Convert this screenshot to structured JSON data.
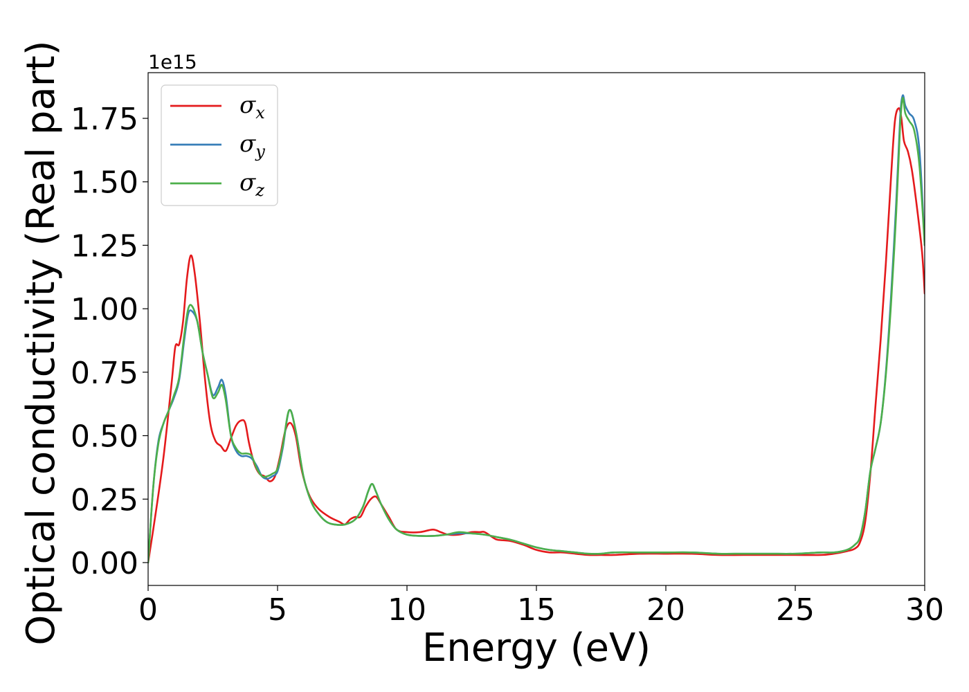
{
  "chart_data": {
    "type": "line",
    "title": "",
    "xlabel": "Energy (eV)",
    "ylabel": "Optical conductivity (Real part)",
    "y_offset_label": "1e15",
    "xlim": [
      0,
      30
    ],
    "ylim": [
      -0.09,
      1.93
    ],
    "x_ticks": [
      0,
      5,
      10,
      15,
      20,
      25,
      30
    ],
    "x_tick_labels": [
      "0",
      "5",
      "10",
      "15",
      "20",
      "25",
      "30"
    ],
    "y_ticks": [
      0.0,
      0.25,
      0.5,
      0.75,
      1.0,
      1.25,
      1.5,
      1.75
    ],
    "y_tick_labels": [
      "0.00",
      "0.25",
      "0.50",
      "0.75",
      "1.00",
      "1.25",
      "1.50",
      "1.75"
    ],
    "grid": false,
    "legend_position": "top-left",
    "series": [
      {
        "name": "σ",
        "subscript": "x",
        "color": "#e41a1c",
        "x": [
          0,
          0.3,
          0.6,
          0.9,
          1.05,
          1.2,
          1.35,
          1.5,
          1.65,
          1.8,
          2.0,
          2.2,
          2.4,
          2.6,
          2.8,
          3.0,
          3.2,
          3.4,
          3.6,
          3.75,
          3.9,
          4.1,
          4.3,
          4.5,
          4.7,
          4.9,
          5.1,
          5.3,
          5.5,
          5.7,
          5.9,
          6.1,
          6.3,
          6.6,
          7.0,
          7.4,
          7.6,
          7.8,
          8.0,
          8.2,
          8.4,
          8.6,
          8.8,
          9.0,
          9.3,
          9.6,
          10.0,
          10.5,
          11.0,
          11.3,
          11.6,
          12.0,
          12.5,
          12.8,
          13.0,
          13.3,
          13.5,
          14.0,
          14.5,
          15.0,
          15.5,
          16.0,
          16.5,
          17.0,
          17.5,
          18.0,
          19.0,
          20.0,
          21.0,
          22.0,
          23.0,
          24.0,
          25.0,
          26.0,
          26.5,
          27.0,
          27.3,
          27.5,
          27.7,
          27.9,
          28.1,
          28.3,
          28.5,
          28.7,
          28.85,
          29.0,
          29.1,
          29.2,
          29.35,
          29.5,
          29.7,
          29.9,
          30.0
        ],
        "values": [
          0.0,
          0.2,
          0.42,
          0.7,
          0.85,
          0.86,
          0.95,
          1.12,
          1.21,
          1.14,
          0.95,
          0.72,
          0.55,
          0.48,
          0.46,
          0.44,
          0.49,
          0.54,
          0.56,
          0.55,
          0.47,
          0.39,
          0.35,
          0.34,
          0.32,
          0.34,
          0.42,
          0.52,
          0.55,
          0.5,
          0.38,
          0.3,
          0.25,
          0.21,
          0.18,
          0.16,
          0.15,
          0.17,
          0.18,
          0.18,
          0.22,
          0.25,
          0.26,
          0.23,
          0.18,
          0.13,
          0.12,
          0.12,
          0.13,
          0.12,
          0.11,
          0.11,
          0.12,
          0.12,
          0.12,
          0.1,
          0.09,
          0.085,
          0.07,
          0.05,
          0.04,
          0.04,
          0.035,
          0.03,
          0.03,
          0.03,
          0.035,
          0.035,
          0.035,
          0.03,
          0.03,
          0.03,
          0.03,
          0.03,
          0.035,
          0.045,
          0.055,
          0.08,
          0.16,
          0.35,
          0.62,
          0.88,
          1.18,
          1.52,
          1.74,
          1.79,
          1.75,
          1.66,
          1.62,
          1.55,
          1.4,
          1.22,
          1.06
        ]
      },
      {
        "name": "σ",
        "subscript": "y",
        "color": "#377eb8",
        "x": [
          0,
          0.2,
          0.4,
          0.6,
          0.8,
          1.0,
          1.2,
          1.4,
          1.55,
          1.7,
          1.9,
          2.1,
          2.3,
          2.5,
          2.7,
          2.85,
          3.0,
          3.2,
          3.4,
          3.6,
          3.8,
          4.0,
          4.2,
          4.4,
          4.6,
          4.8,
          5.0,
          5.2,
          5.45,
          5.7,
          6.0,
          6.3,
          6.6,
          6.9,
          7.2,
          7.6,
          8.0,
          8.3,
          8.5,
          8.65,
          8.8,
          9.0,
          9.3,
          9.6,
          10.0,
          10.5,
          11.0,
          11.5,
          12.0,
          12.5,
          13.0,
          13.5,
          14.0,
          14.5,
          15.0,
          15.5,
          16.0,
          16.5,
          17.0,
          17.5,
          18.0,
          19.0,
          20.0,
          21.0,
          22.0,
          23.0,
          24.0,
          25.0,
          26.0,
          26.5,
          27.0,
          27.3,
          27.5,
          27.7,
          27.9,
          28.1,
          28.3,
          28.5,
          28.7,
          28.9,
          29.05,
          29.15,
          29.25,
          29.4,
          29.6,
          29.8,
          30.0
        ],
        "values": [
          0.0,
          0.3,
          0.48,
          0.55,
          0.6,
          0.65,
          0.72,
          0.88,
          0.98,
          0.99,
          0.95,
          0.83,
          0.74,
          0.66,
          0.69,
          0.72,
          0.66,
          0.5,
          0.44,
          0.42,
          0.42,
          0.41,
          0.38,
          0.34,
          0.33,
          0.34,
          0.36,
          0.45,
          0.6,
          0.52,
          0.34,
          0.24,
          0.19,
          0.16,
          0.15,
          0.15,
          0.17,
          0.22,
          0.28,
          0.31,
          0.28,
          0.23,
          0.17,
          0.13,
          0.11,
          0.105,
          0.105,
          0.11,
          0.115,
          0.115,
          0.11,
          0.1,
          0.09,
          0.075,
          0.06,
          0.05,
          0.045,
          0.04,
          0.035,
          0.035,
          0.04,
          0.04,
          0.04,
          0.04,
          0.035,
          0.035,
          0.035,
          0.035,
          0.04,
          0.04,
          0.05,
          0.07,
          0.1,
          0.2,
          0.36,
          0.45,
          0.55,
          0.75,
          1.05,
          1.42,
          1.75,
          1.84,
          1.8,
          1.77,
          1.74,
          1.62,
          1.25
        ]
      },
      {
        "name": "σ",
        "subscript": "z",
        "color": "#4daf4a",
        "x": [
          0,
          0.2,
          0.4,
          0.6,
          0.8,
          1.0,
          1.2,
          1.4,
          1.55,
          1.7,
          1.9,
          2.1,
          2.3,
          2.5,
          2.7,
          2.85,
          3.0,
          3.2,
          3.4,
          3.6,
          3.8,
          4.0,
          4.2,
          4.4,
          4.6,
          4.8,
          5.0,
          5.2,
          5.45,
          5.7,
          6.0,
          6.3,
          6.6,
          6.9,
          7.2,
          7.6,
          8.0,
          8.3,
          8.5,
          8.65,
          8.8,
          9.0,
          9.3,
          9.6,
          10.0,
          10.5,
          11.0,
          11.5,
          12.0,
          12.5,
          13.0,
          13.5,
          14.0,
          14.5,
          15.0,
          15.5,
          16.0,
          16.5,
          17.0,
          17.5,
          18.0,
          19.0,
          20.0,
          21.0,
          22.0,
          23.0,
          24.0,
          25.0,
          26.0,
          26.5,
          27.0,
          27.3,
          27.5,
          27.7,
          27.9,
          28.1,
          28.3,
          28.5,
          28.7,
          28.9,
          29.05,
          29.15,
          29.25,
          29.4,
          29.6,
          29.8,
          30.0
        ],
        "values": [
          0.0,
          0.3,
          0.47,
          0.55,
          0.6,
          0.66,
          0.73,
          0.9,
          1.0,
          1.01,
          0.95,
          0.83,
          0.74,
          0.65,
          0.67,
          0.7,
          0.64,
          0.5,
          0.45,
          0.43,
          0.43,
          0.42,
          0.37,
          0.34,
          0.34,
          0.35,
          0.37,
          0.46,
          0.6,
          0.52,
          0.34,
          0.24,
          0.19,
          0.16,
          0.15,
          0.15,
          0.17,
          0.22,
          0.28,
          0.31,
          0.28,
          0.23,
          0.17,
          0.13,
          0.11,
          0.105,
          0.105,
          0.11,
          0.12,
          0.115,
          0.11,
          0.1,
          0.09,
          0.075,
          0.06,
          0.05,
          0.045,
          0.04,
          0.035,
          0.035,
          0.04,
          0.04,
          0.04,
          0.04,
          0.035,
          0.035,
          0.035,
          0.035,
          0.04,
          0.04,
          0.05,
          0.07,
          0.1,
          0.2,
          0.36,
          0.45,
          0.55,
          0.74,
          1.02,
          1.38,
          1.72,
          1.83,
          1.77,
          1.74,
          1.7,
          1.56,
          1.25
        ]
      }
    ]
  }
}
